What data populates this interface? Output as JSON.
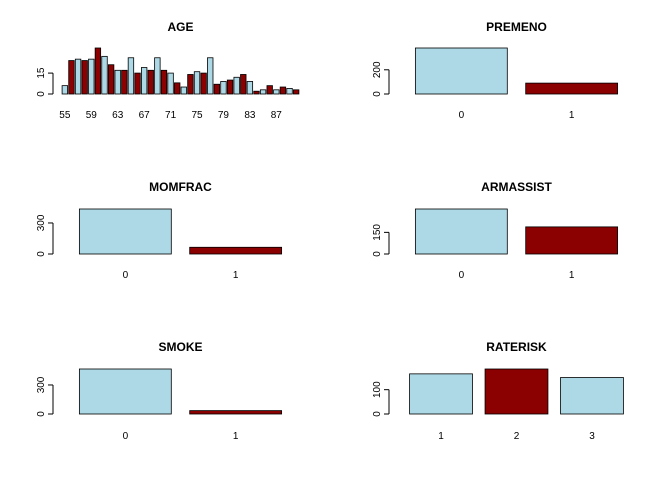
{
  "colors": {
    "light": "#add8e6",
    "dark": "#8b0000"
  },
  "chart_data": [
    {
      "type": "bar",
      "title": "AGE",
      "categories": [
        "55",
        "56",
        "57",
        "58",
        "59",
        "60",
        "61",
        "62",
        "63",
        "64",
        "65",
        "66",
        "67",
        "68",
        "69",
        "70",
        "71",
        "72",
        "73",
        "74",
        "75",
        "76",
        "77",
        "78",
        "79",
        "80",
        "81",
        "82",
        "83",
        "84",
        "85",
        "86",
        "87",
        "88",
        "89",
        "90"
      ],
      "x_tick_labels": [
        "55",
        "59",
        "63",
        "67",
        "71",
        "75",
        "79",
        "83",
        "87"
      ],
      "values": [
        6,
        24,
        25,
        24,
        25,
        33,
        27,
        21,
        17,
        17,
        26,
        15,
        19,
        17,
        26,
        17,
        15,
        8,
        5,
        14,
        16,
        15,
        26,
        7,
        9,
        10,
        12,
        14,
        9,
        2,
        3,
        6,
        3,
        5,
        4,
        3
      ],
      "ylim": [
        0,
        33
      ],
      "y_ticks": [
        0,
        15
      ]
    },
    {
      "type": "bar",
      "title": "PREMENO",
      "categories": [
        "0",
        "1"
      ],
      "values": [
        380,
        90
      ],
      "ylim": [
        0,
        380
      ],
      "y_ticks": [
        0,
        200
      ]
    },
    {
      "type": "bar",
      "title": "MOMFRAC",
      "categories": [
        "0",
        "1"
      ],
      "values": [
        435,
        65
      ],
      "ylim": [
        0,
        435
      ],
      "y_ticks": [
        0,
        300
      ]
    },
    {
      "type": "bar",
      "title": "ARMASSIST",
      "categories": [
        "0",
        "1"
      ],
      "values": [
        312,
        188
      ],
      "ylim": [
        0,
        312
      ],
      "y_ticks": [
        0,
        150
      ]
    },
    {
      "type": "bar",
      "title": "SMOKE",
      "categories": [
        "0",
        "1"
      ],
      "values": [
        465,
        35
      ],
      "ylim": [
        0,
        465
      ],
      "y_ticks": [
        0,
        300
      ]
    },
    {
      "type": "bar",
      "title": "RATERISK",
      "categories": [
        "1",
        "2",
        "3"
      ],
      "values": [
        165,
        185,
        150
      ],
      "ylim": [
        0,
        185
      ],
      "y_ticks": [
        0,
        100
      ]
    }
  ]
}
